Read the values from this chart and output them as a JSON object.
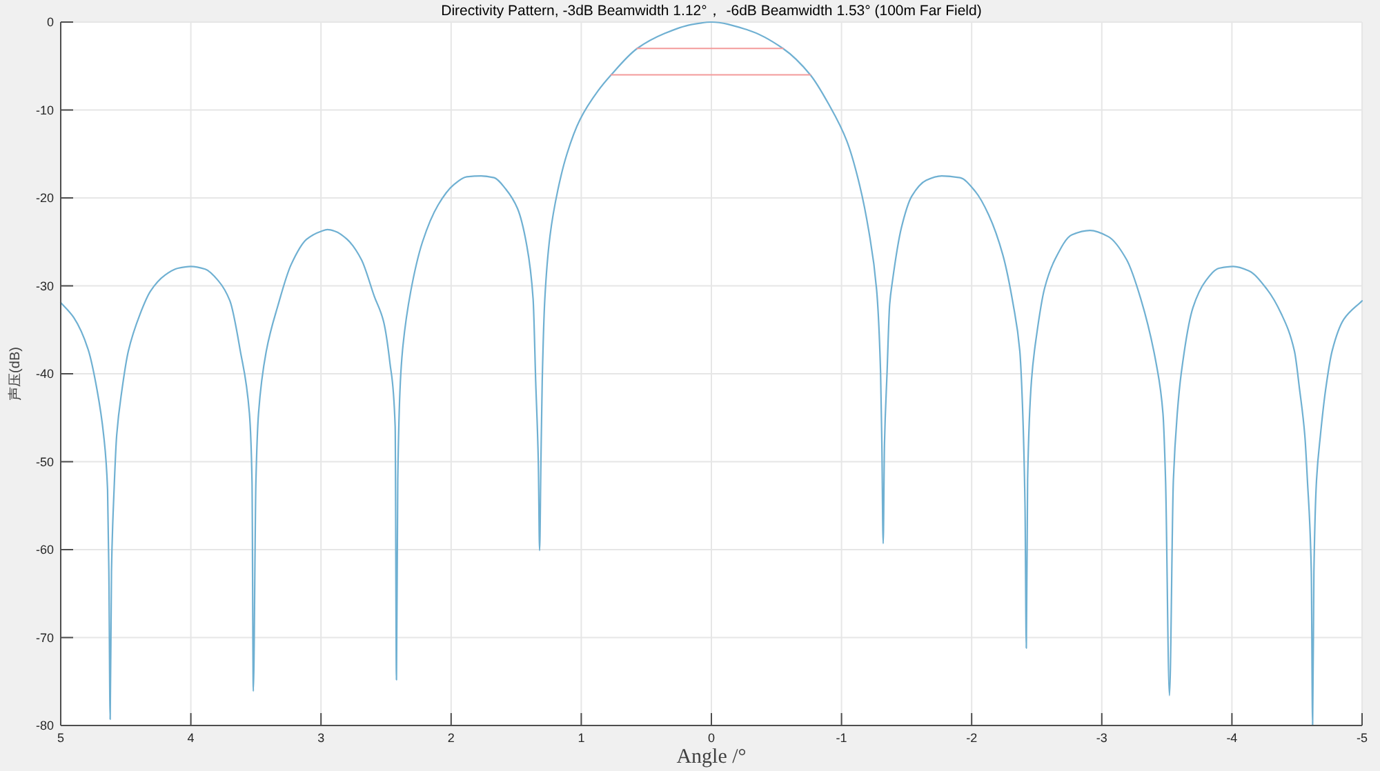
{
  "chart_data": {
    "type": "line",
    "title": "Directivity Pattern, -3dB Beamwidth 1.12°， -6dB Beamwidth 1.53° (100m Far Field)",
    "xlabel": "Angle /°",
    "ylabel": "声压(dB)",
    "xlim": [
      5,
      -5
    ],
    "ylim": [
      -80,
      0
    ],
    "xticks": [
      5,
      4,
      3,
      2,
      1,
      0,
      -1,
      -2,
      -3,
      -4,
      -5
    ],
    "yticks": [
      -80,
      -70,
      -60,
      -50,
      -40,
      -30,
      -20,
      -10,
      0
    ],
    "grid": true,
    "series": [
      {
        "color": "#6fb0d2",
        "x": [
          5,
          4.9,
          4.79,
          4.72,
          4.67,
          4.64,
          4.63,
          4.62,
          4.61,
          4.59,
          4.57,
          4.53,
          4.48,
          4.39,
          4.31,
          4.2,
          4.1,
          4.0,
          3.89,
          3.79,
          3.7,
          3.62,
          3.55,
          3.53,
          3.52,
          3.5,
          3.48,
          3.42,
          3.33,
          3.23,
          3.11,
          3.0,
          2.95,
          2.89,
          2.8,
          2.69,
          2.59,
          2.52,
          2.47,
          2.43,
          2.42,
          2.41,
          2.39,
          2.37,
          2.31,
          2.22,
          2.1,
          1.98,
          1.88,
          1.77,
          1.67,
          1.58,
          1.49,
          1.42,
          1.37,
          1.35,
          1.33,
          1.32,
          1.31,
          1.3,
          1.28,
          1.24,
          1.18,
          1.11,
          1.01,
          0.87,
          0.77,
          0.57,
          0.36,
          0.16,
          0,
          -0.28,
          -0.55,
          -0.76,
          -0.9,
          -1.04,
          -1.14,
          -1.21,
          -1.27,
          -1.3,
          -1.31,
          -1.32,
          -1.33,
          -1.35,
          -1.37,
          -1.39,
          -1.46,
          -1.54,
          -1.65,
          -1.77,
          -1.91,
          -2.03,
          -2.13,
          -2.24,
          -2.32,
          -2.37,
          -2.39,
          -2.41,
          -2.42,
          -2.43,
          -2.46,
          -2.5,
          -2.56,
          -2.64,
          -2.77,
          -2.91,
          -3.05,
          -3.19,
          -3.3,
          -3.42,
          -3.47,
          -3.49,
          -3.52,
          -3.55,
          -3.58,
          -3.61,
          -3.7,
          -3.8,
          -3.9,
          -4.01,
          -4.13,
          -4.27,
          -4.38,
          -4.48,
          -4.52,
          -4.56,
          -4.58,
          -4.61,
          -4.62,
          -4.63,
          -4.65,
          -4.68,
          -4.72,
          -4.77,
          -4.86,
          -5
        ],
        "values": [
          -31.9,
          -33.6,
          -37.2,
          -41.9,
          -47,
          -53.2,
          -62.5,
          -79.3,
          -62.5,
          -53.2,
          -47,
          -41.9,
          -37.4,
          -33.2,
          -30.6,
          -28.8,
          -28.0,
          -27.8,
          -28.1,
          -29.4,
          -31.7,
          -37.4,
          -44.5,
          -52.2,
          -76.1,
          -52.2,
          -44.5,
          -37.4,
          -32.2,
          -27.6,
          -24.7,
          -23.8,
          -23.6,
          -23.8,
          -24.7,
          -27.0,
          -31.2,
          -34.0,
          -38.8,
          -46,
          -74.8,
          -52,
          -40.9,
          -36.8,
          -30.6,
          -25.0,
          -20.8,
          -18.5,
          -17.6,
          -17.5,
          -17.7,
          -19.0,
          -21.2,
          -25.3,
          -31.5,
          -40.9,
          -50,
          -60.1,
          -50,
          -40.9,
          -31.5,
          -24.3,
          -19.1,
          -15,
          -11.1,
          -7.8,
          -6,
          -3,
          -1.3,
          -0.3,
          0,
          -0.9,
          -3,
          -6,
          -9.3,
          -13.5,
          -18.6,
          -23.8,
          -30.5,
          -39.8,
          -48,
          -59.3,
          -48,
          -39.8,
          -32.1,
          -29.6,
          -23.4,
          -19.8,
          -18.0,
          -17.5,
          -17.7,
          -19.3,
          -21.9,
          -26.5,
          -32.2,
          -37.4,
          -43.4,
          -55,
          -71.2,
          -52,
          -40.7,
          -35.5,
          -30.3,
          -27.0,
          -24.2,
          -23.7,
          -24.4,
          -27.0,
          -31.5,
          -39,
          -44.5,
          -52.1,
          -76.6,
          -52.1,
          -44.5,
          -40,
          -32.5,
          -29.4,
          -28.0,
          -27.8,
          -28.3,
          -30.4,
          -33.2,
          -37.4,
          -41.8,
          -47,
          -52.1,
          -62.5,
          -80,
          -62.5,
          -52.1,
          -47,
          -41.8,
          -37.4,
          -33.8,
          -31.7
        ]
      },
      {
        "color": "#f39a9a",
        "x": [
          0.57,
          -0.55
        ],
        "values": [
          -3,
          -3
        ]
      },
      {
        "color": "#f39a9a",
        "x": [
          0.77,
          -0.76
        ],
        "values": [
          -6,
          -6
        ]
      }
    ]
  }
}
